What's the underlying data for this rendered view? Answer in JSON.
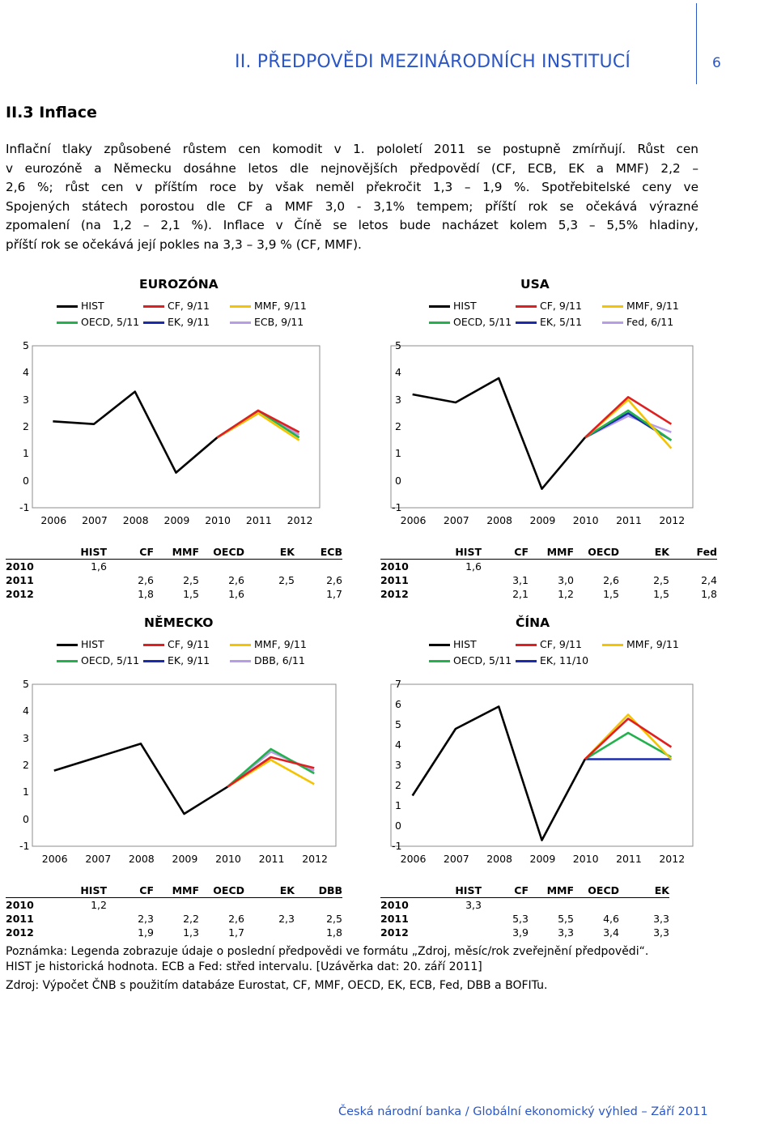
{
  "header": {
    "title": "II. PŘEDPOVĚDI MEZINÁRODNÍCH INSTITUCÍ",
    "page_number": "6"
  },
  "section_title": "II.3 Inflace",
  "paragraph_lines": [
    "Inflační tlaky způsobené růstem cen komodit v 1. pololetí 2011 se postupně zmírňují. Růst cen",
    "v eurozóně a Německu dosáhne letos dle nejnovějších předpovědí (CF, ECB, EK a MMF) 2,2 –",
    "2,6 %; růst cen v příštím roce by však neměl překročit 1,3 – 1,9 %. Spotřebitelské ceny ve",
    "Spojených státech porostou dle CF a MMF 3,0 - 3,1% tempem; příští rok se očekává výrazné",
    "zpomalení (na 1,2 – 2,1 %). Inflace v Číně se letos bude nacházet kolem 5,3 – 5,5% hladiny,",
    "příští rok se očekává její pokles na 3,3 – 3,9 % (CF, MMF)."
  ],
  "colors": {
    "HIST": "#000000",
    "CF": "#e02020",
    "MMF": "#f5c400",
    "OECD": "#22b14c",
    "EK": "#1b2bb0",
    "ECB": "#b79de8",
    "Fed": "#b79de8",
    "DBB": "#b79de8",
    "accent": "#2a56c6"
  },
  "chart_data": [
    {
      "id": "ez",
      "type": "line",
      "title": "EUROZÓNA",
      "x": [
        "2006",
        "2007",
        "2008",
        "2009",
        "2010",
        "2011",
        "2012"
      ],
      "ylim": [
        -1,
        5
      ],
      "yticks": [
        "5",
        "4",
        "3",
        "2",
        "1",
        "0",
        "-1"
      ],
      "legend": [
        "HIST",
        "CF, 9/11",
        "MMF, 9/11",
        "OECD, 5/11",
        "EK, 9/11",
        "ECB, 9/11"
      ],
      "series": [
        {
          "name": "HIST",
          "values": [
            2.2,
            2.1,
            3.3,
            0.3,
            1.6,
            null,
            null
          ]
        },
        {
          "name": "CF",
          "values": [
            null,
            null,
            null,
            null,
            1.6,
            2.6,
            1.8
          ]
        },
        {
          "name": "MMF",
          "values": [
            null,
            null,
            null,
            null,
            1.6,
            2.5,
            1.5
          ]
        },
        {
          "name": "OECD",
          "values": [
            null,
            null,
            null,
            null,
            1.6,
            2.6,
            1.6
          ]
        },
        {
          "name": "EK",
          "values": [
            null,
            null,
            null,
            null,
            1.6,
            2.5,
            null
          ]
        },
        {
          "name": "ECB",
          "values": [
            null,
            null,
            null,
            null,
            1.6,
            2.6,
            1.7
          ]
        }
      ]
    },
    {
      "id": "us",
      "type": "line",
      "title": "USA",
      "x": [
        "2006",
        "2007",
        "2008",
        "2009",
        "2010",
        "2011",
        "2012"
      ],
      "ylim": [
        -1,
        5
      ],
      "yticks": [
        "5",
        "4",
        "3",
        "2",
        "1",
        "0",
        "-1"
      ],
      "legend": [
        "HIST",
        "CF, 9/11",
        "MMF, 9/11",
        "OECD, 5/11",
        "EK, 5/11",
        "Fed, 6/11"
      ],
      "series": [
        {
          "name": "HIST",
          "values": [
            3.2,
            2.9,
            3.8,
            -0.3,
            1.6,
            null,
            null
          ]
        },
        {
          "name": "CF",
          "values": [
            null,
            null,
            null,
            null,
            1.6,
            3.1,
            2.1
          ]
        },
        {
          "name": "MMF",
          "values": [
            null,
            null,
            null,
            null,
            1.6,
            3.0,
            1.2
          ]
        },
        {
          "name": "OECD",
          "values": [
            null,
            null,
            null,
            null,
            1.6,
            2.6,
            1.5
          ]
        },
        {
          "name": "EK",
          "values": [
            null,
            null,
            null,
            null,
            1.6,
            2.5,
            1.5
          ]
        },
        {
          "name": "Fed",
          "values": [
            null,
            null,
            null,
            null,
            1.6,
            2.4,
            1.8
          ]
        }
      ]
    },
    {
      "id": "de",
      "type": "line",
      "title": "NĚMECKO",
      "x": [
        "2006",
        "2007",
        "2008",
        "2009",
        "2010",
        "2011",
        "2012"
      ],
      "ylim": [
        -1,
        5
      ],
      "yticks": [
        "5",
        "4",
        "3",
        "2",
        "1",
        "0",
        "-1"
      ],
      "legend": [
        "HIST",
        "CF, 9/11",
        "MMF, 9/11",
        "OECD, 5/11",
        "EK, 9/11",
        "DBB, 6/11"
      ],
      "series": [
        {
          "name": "HIST",
          "values": [
            1.8,
            2.3,
            2.8,
            0.2,
            1.2,
            null,
            null
          ]
        },
        {
          "name": "CF",
          "values": [
            null,
            null,
            null,
            null,
            1.2,
            2.3,
            1.9
          ]
        },
        {
          "name": "MMF",
          "values": [
            null,
            null,
            null,
            null,
            1.2,
            2.2,
            1.3
          ]
        },
        {
          "name": "OECD",
          "values": [
            null,
            null,
            null,
            null,
            1.2,
            2.6,
            1.7
          ]
        },
        {
          "name": "EK",
          "values": [
            null,
            null,
            null,
            null,
            1.2,
            2.3,
            null
          ]
        },
        {
          "name": "DBB",
          "values": [
            null,
            null,
            null,
            null,
            1.2,
            2.5,
            1.8
          ]
        }
      ]
    },
    {
      "id": "cn",
      "type": "line",
      "title": "ČÍNA",
      "x": [
        "2006",
        "2007",
        "2008",
        "2009",
        "2010",
        "2011",
        "2012"
      ],
      "ylim": [
        -1,
        7
      ],
      "yticks": [
        "7",
        "6",
        "5",
        "4",
        "3",
        "2",
        "1",
        "0",
        "-1"
      ],
      "legend": [
        "HIST",
        "CF, 9/11",
        "MMF, 9/11",
        "OECD, 5/11",
        "EK, 11/10"
      ],
      "series": [
        {
          "name": "HIST",
          "values": [
            1.5,
            4.8,
            5.9,
            -0.7,
            3.3,
            null,
            null
          ]
        },
        {
          "name": "CF",
          "values": [
            null,
            null,
            null,
            null,
            3.3,
            5.3,
            3.9
          ]
        },
        {
          "name": "MMF",
          "values": [
            null,
            null,
            null,
            null,
            3.3,
            5.5,
            3.3
          ]
        },
        {
          "name": "OECD",
          "values": [
            null,
            null,
            null,
            null,
            3.3,
            4.6,
            3.4
          ]
        },
        {
          "name": "EK",
          "values": [
            null,
            null,
            null,
            null,
            3.3,
            3.3,
            3.3
          ]
        }
      ]
    }
  ],
  "tables": {
    "ez": {
      "cols": [
        "",
        "HIST",
        "CF",
        "MMF",
        "OECD",
        "EK",
        "ECB"
      ],
      "rows": [
        [
          "2010",
          "1,6",
          "",
          "",
          "",
          "",
          ""
        ],
        [
          "2011",
          "",
          "2,6",
          "2,5",
          "2,6",
          "2,5",
          "2,6"
        ],
        [
          "2012",
          "",
          "1,8",
          "1,5",
          "1,6",
          "",
          "1,7"
        ]
      ]
    },
    "us": {
      "cols": [
        "",
        "HIST",
        "CF",
        "MMF",
        "OECD",
        "EK",
        "Fed"
      ],
      "rows": [
        [
          "2010",
          "1,6",
          "",
          "",
          "",
          "",
          ""
        ],
        [
          "2011",
          "",
          "3,1",
          "3,0",
          "2,6",
          "2,5",
          "2,4"
        ],
        [
          "2012",
          "",
          "2,1",
          "1,2",
          "1,5",
          "1,5",
          "1,8"
        ]
      ]
    },
    "de": {
      "cols": [
        "",
        "HIST",
        "CF",
        "MMF",
        "OECD",
        "EK",
        "DBB"
      ],
      "rows": [
        [
          "2010",
          "1,2",
          "",
          "",
          "",
          "",
          ""
        ],
        [
          "2011",
          "",
          "2,3",
          "2,2",
          "2,6",
          "2,3",
          "2,5"
        ],
        [
          "2012",
          "",
          "1,9",
          "1,3",
          "1,7",
          "",
          "1,8"
        ]
      ]
    },
    "cn": {
      "cols": [
        "",
        "HIST",
        "CF",
        "MMF",
        "OECD",
        "EK"
      ],
      "rows": [
        [
          "2010",
          "3,3",
          "",
          "",
          "",
          ""
        ],
        [
          "2011",
          "",
          "5,3",
          "5,5",
          "4,6",
          "3,3"
        ],
        [
          "2012",
          "",
          "3,9",
          "3,3",
          "3,4",
          "3,3"
        ]
      ]
    }
  },
  "notes": [
    "Poznámka: Legenda zobrazuje údaje o poslední předpovědi ve formátu „Zdroj, měsíc/rok zveřejnění předpovědi“.",
    "HIST je historická hodnota. ECB a Fed: střed intervalu. [Uzávěrka dat: 20. září 2011]",
    "Zdroj: Výpočet ČNB s použitím databáze Eurostat, CF, MMF, OECD, EK, ECB, Fed, DBB a BOFITu."
  ],
  "footer": "Česká národní banka / Globální ekonomický výhled – Září 2011"
}
